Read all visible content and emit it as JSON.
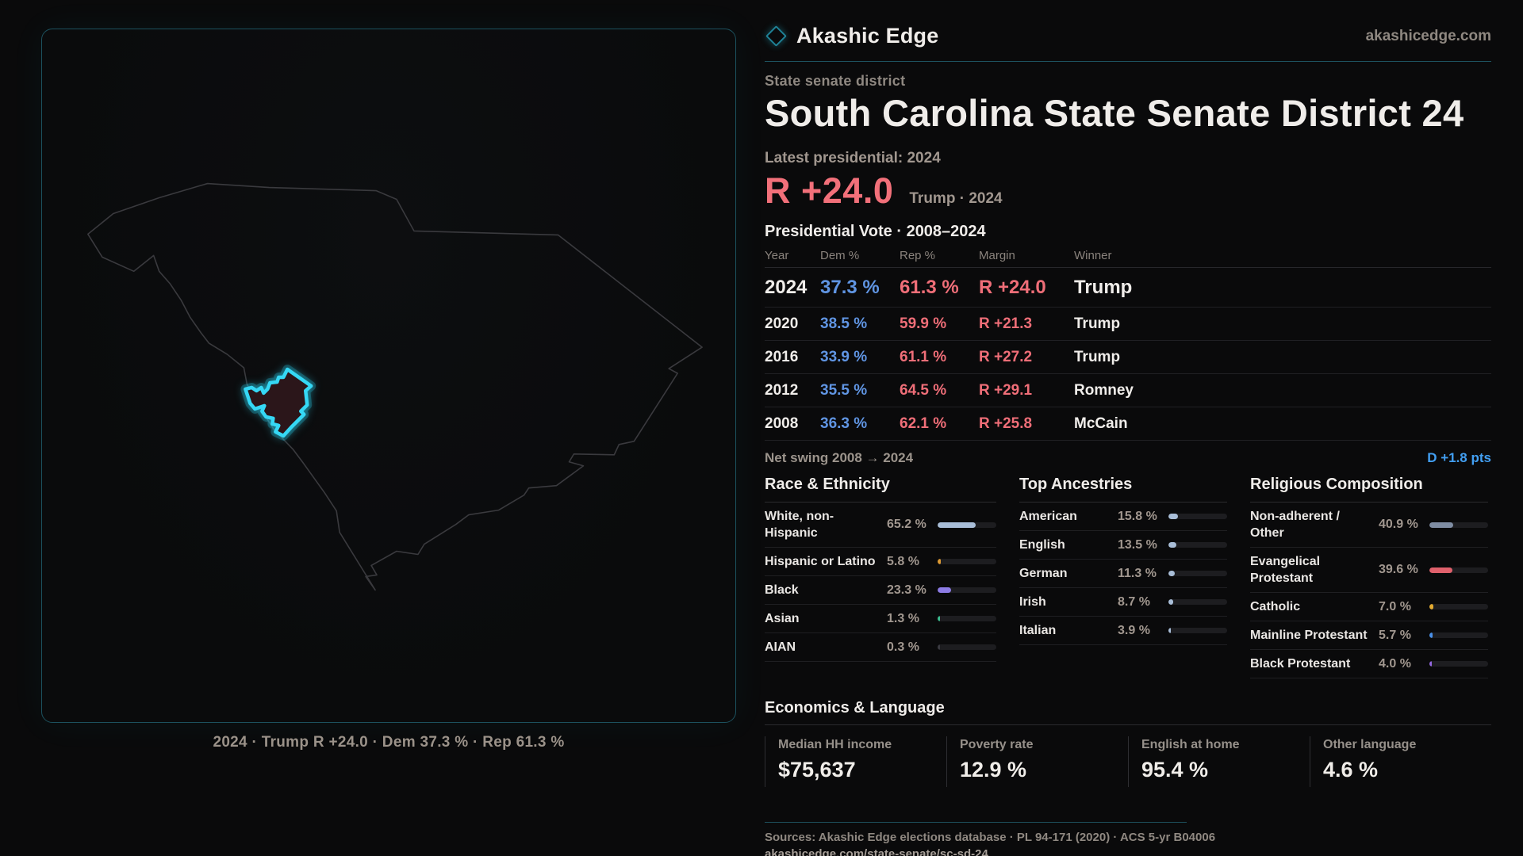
{
  "brand": {
    "name": "Akashic Edge",
    "site": "akashicedge.com"
  },
  "map_panel": {
    "region": "South Carolina",
    "highlighted_district": "State Senate District 24",
    "caption": "2024 · Trump R +24.0 · Dem 37.3 % · Rep 61.3 %",
    "accent_color": "#35d8f5"
  },
  "profile": {
    "kicker": "State senate district",
    "title": "South Carolina State Senate District 24",
    "latest_label": "Latest presidential: 2024",
    "headline_margin": "R +24.0",
    "headline_margin_color": "#f2707a",
    "headline_context": "Trump · 2024"
  },
  "vote_table": {
    "title": "Presidential Vote · 2008–2024",
    "columns": [
      "Year",
      "Dem %",
      "Rep %",
      "Margin",
      "Winner"
    ],
    "rows": [
      {
        "year": "2024",
        "dem": "37.3 %",
        "rep": "61.3 %",
        "margin": "R +24.0",
        "winner": "Trump"
      },
      {
        "year": "2020",
        "dem": "38.5 %",
        "rep": "59.9 %",
        "margin": "R +21.3",
        "winner": "Trump"
      },
      {
        "year": "2016",
        "dem": "33.9 %",
        "rep": "61.1 %",
        "margin": "R +27.2",
        "winner": "Trump"
      },
      {
        "year": "2012",
        "dem": "35.5 %",
        "rep": "64.5 %",
        "margin": "R +29.1",
        "winner": "Romney"
      },
      {
        "year": "2008",
        "dem": "36.3 %",
        "rep": "62.1 %",
        "margin": "R +25.8",
        "winner": "McCain"
      }
    ],
    "dem_color": "#6095e3",
    "rep_color": "#ef6e78",
    "net_swing_label": "Net swing 2008 → 2024",
    "net_swing_value": "D +1.8 pts",
    "net_swing_color": "#429ff2"
  },
  "demographics": {
    "race": {
      "title": "Race & Ethnicity",
      "rows": [
        {
          "label": "White, non-Hispanic",
          "value": "65.2 %",
          "pct": 65.2,
          "color": "#a9bed8"
        },
        {
          "label": "Hispanic or Latino",
          "value": "5.8 %",
          "pct": 5.8,
          "color": "#dd9a33"
        },
        {
          "label": "Black",
          "value": "23.3 %",
          "pct": 23.3,
          "color": "#8d7ce5"
        },
        {
          "label": "Asian",
          "value": "1.3 %",
          "pct": 1.3,
          "color": "#3bbd8f"
        },
        {
          "label": "AIAN",
          "value": "0.3 %",
          "pct": 0.3,
          "color": "#3a3a40"
        }
      ]
    },
    "ancestries": {
      "title": "Top Ancestries",
      "rows": [
        {
          "label": "American",
          "value": "15.8 %",
          "pct": 15.8,
          "color": "#a9bed8"
        },
        {
          "label": "English",
          "value": "13.5 %",
          "pct": 13.5,
          "color": "#a9bed8"
        },
        {
          "label": "German",
          "value": "11.3 %",
          "pct": 11.3,
          "color": "#a9bed8"
        },
        {
          "label": "Irish",
          "value": "8.7 %",
          "pct": 8.7,
          "color": "#a9bed8"
        },
        {
          "label": "Italian",
          "value": "3.9 %",
          "pct": 3.9,
          "color": "#a9bed8"
        }
      ]
    },
    "religion": {
      "title": "Religious Composition",
      "rows": [
        {
          "label": "Non-adherent / Other",
          "value": "40.9 %",
          "pct": 40.9,
          "color": "#7f8da3"
        },
        {
          "label": "Evangelical Protestant",
          "value": "39.6 %",
          "pct": 39.6,
          "color": "#e0616c"
        },
        {
          "label": "Catholic",
          "value": "7.0 %",
          "pct": 7.0,
          "color": "#e3ab31"
        },
        {
          "label": "Mainline Protestant",
          "value": "5.7 %",
          "pct": 5.7,
          "color": "#4a90e8"
        },
        {
          "label": "Black Protestant",
          "value": "4.0 %",
          "pct": 4.0,
          "color": "#9468e0"
        }
      ]
    }
  },
  "economics": {
    "title": "Economics & Language",
    "stats": [
      {
        "label": "Median HH income",
        "value": "$75,637"
      },
      {
        "label": "Poverty rate",
        "value": "12.9 %"
      },
      {
        "label": "English at home",
        "value": "95.4 %"
      },
      {
        "label": "Other language",
        "value": "4.6 %"
      }
    ]
  },
  "footer": {
    "sources": "Sources: Akashic Edge elections database · PL 94-171 (2020) · ACS 5-yr B04006",
    "permalink": "akashicedge.com/state-senate/sc-sd-24"
  },
  "chart_data": [
    {
      "type": "table",
      "title": "Presidential Vote · 2008–2024",
      "columns": [
        "Year",
        "Dem %",
        "Rep %",
        "Margin",
        "Winner"
      ],
      "rows": [
        [
          "2024",
          37.3,
          61.3,
          "R +24.0",
          "Trump"
        ],
        [
          "2020",
          38.5,
          59.9,
          "R +21.3",
          "Trump"
        ],
        [
          "2016",
          33.9,
          61.1,
          "R +27.2",
          "Trump"
        ],
        [
          "2012",
          35.5,
          64.5,
          "R +29.1",
          "Romney"
        ],
        [
          "2008",
          36.3,
          62.1,
          "R +25.8",
          "McCain"
        ]
      ]
    },
    {
      "type": "bar",
      "title": "Race & Ethnicity",
      "categories": [
        "White, non-Hispanic",
        "Hispanic or Latino",
        "Black",
        "Asian",
        "AIAN"
      ],
      "values": [
        65.2,
        5.8,
        23.3,
        1.3,
        0.3
      ],
      "xlabel": "",
      "ylabel": "%",
      "ylim": [
        0,
        100
      ]
    },
    {
      "type": "bar",
      "title": "Top Ancestries",
      "categories": [
        "American",
        "English",
        "German",
        "Irish",
        "Italian"
      ],
      "values": [
        15.8,
        13.5,
        11.3,
        8.7,
        3.9
      ],
      "xlabel": "",
      "ylabel": "%",
      "ylim": [
        0,
        100
      ]
    },
    {
      "type": "bar",
      "title": "Religious Composition",
      "categories": [
        "Non-adherent / Other",
        "Evangelical Protestant",
        "Catholic",
        "Mainline Protestant",
        "Black Protestant"
      ],
      "values": [
        40.9,
        39.6,
        7.0,
        5.7,
        4.0
      ],
      "xlabel": "",
      "ylabel": "%",
      "ylim": [
        0,
        100
      ]
    }
  ]
}
